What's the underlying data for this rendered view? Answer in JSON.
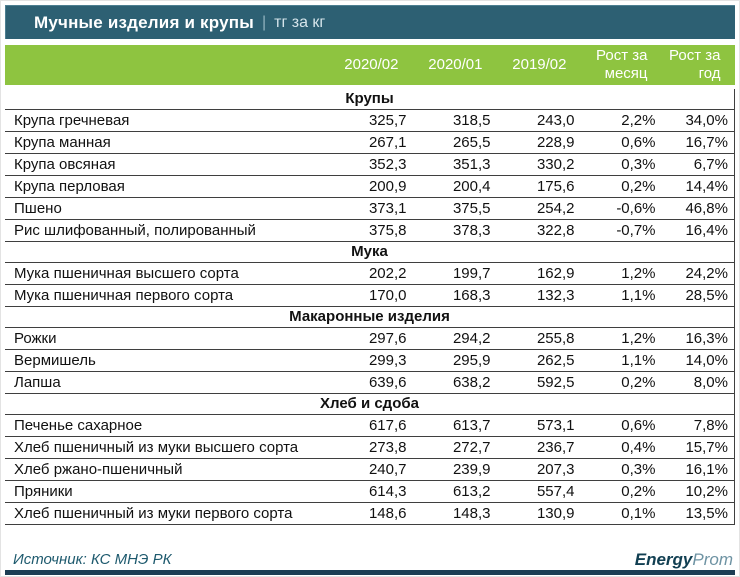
{
  "title_bar": {
    "title": "Мучные изделия и крупы",
    "separator": "|",
    "unit": "тг за кг"
  },
  "chart_data": {
    "type": "table",
    "title": "Мучные изделия и крупы",
    "unit": "тг за кг",
    "columns": [
      "2020/02",
      "2020/01",
      "2019/02",
      "Рост за месяц",
      "Рост за год"
    ],
    "sections": [
      {
        "title": "Крупы",
        "rows": [
          [
            "Крупа гречневая",
            "325,7",
            "318,5",
            "243,0",
            "2,2%",
            "34,0%"
          ],
          [
            "Крупа манная",
            "267,1",
            "265,5",
            "228,9",
            "0,6%",
            "16,7%"
          ],
          [
            "Крупа овсяная",
            "352,3",
            "351,3",
            "330,2",
            "0,3%",
            "6,7%"
          ],
          [
            "Крупа перловая",
            "200,9",
            "200,4",
            "175,6",
            "0,2%",
            "14,4%"
          ],
          [
            "Пшено",
            "373,1",
            "375,5",
            "254,2",
            "-0,6%",
            "46,8%"
          ],
          [
            "Рис шлифованный, полированный",
            "375,8",
            "378,3",
            "322,8",
            "-0,7%",
            "16,4%"
          ]
        ]
      },
      {
        "title": "Мука",
        "rows": [
          [
            "Мука пшеничная высшего сорта",
            "202,2",
            "199,7",
            "162,9",
            "1,2%",
            "24,2%"
          ],
          [
            "Мука пшеничная первого сорта",
            "170,0",
            "168,3",
            "132,3",
            "1,1%",
            "28,5%"
          ]
        ]
      },
      {
        "title": "Макаронные изделия",
        "rows": [
          [
            "Рожки",
            "297,6",
            "294,2",
            "255,8",
            "1,2%",
            "16,3%"
          ],
          [
            "Вермишель",
            "299,3",
            "295,9",
            "262,5",
            "1,1%",
            "14,0%"
          ],
          [
            "Лапша",
            "639,6",
            "638,2",
            "592,5",
            "0,2%",
            "8,0%"
          ]
        ]
      },
      {
        "title": "Хлеб и сдоба",
        "rows": [
          [
            "Печенье сахарное",
            "617,6",
            "613,7",
            "573,1",
            "0,6%",
            "7,8%"
          ],
          [
            "Хлеб пшеничный из муки высшего сорта",
            "273,8",
            "272,7",
            "236,7",
            "0,4%",
            "15,7%"
          ],
          [
            "Хлеб ржано-пшеничный",
            "240,7",
            "239,9",
            "207,3",
            "0,3%",
            "16,1%"
          ],
          [
            "Пряники",
            "614,3",
            "613,2",
            "557,4",
            "0,2%",
            "10,2%"
          ],
          [
            "Хлеб пшеничный из муки первого сорта",
            "148,6",
            "148,3",
            "130,9",
            "0,1%",
            "13,5%"
          ]
        ]
      }
    ]
  },
  "footer": {
    "source": "Источник: КС МНЭ РК",
    "logo": {
      "bold": "Energy",
      "light": "Prom"
    }
  },
  "colors": {
    "title_bar_bg": "#2d6073",
    "header_green": "#8ec440",
    "row_line": "#3f3f3f",
    "source_text": "#1e5a6e",
    "bottom_bar": "#1b3e54",
    "logo_teal": "#2e7e94"
  }
}
